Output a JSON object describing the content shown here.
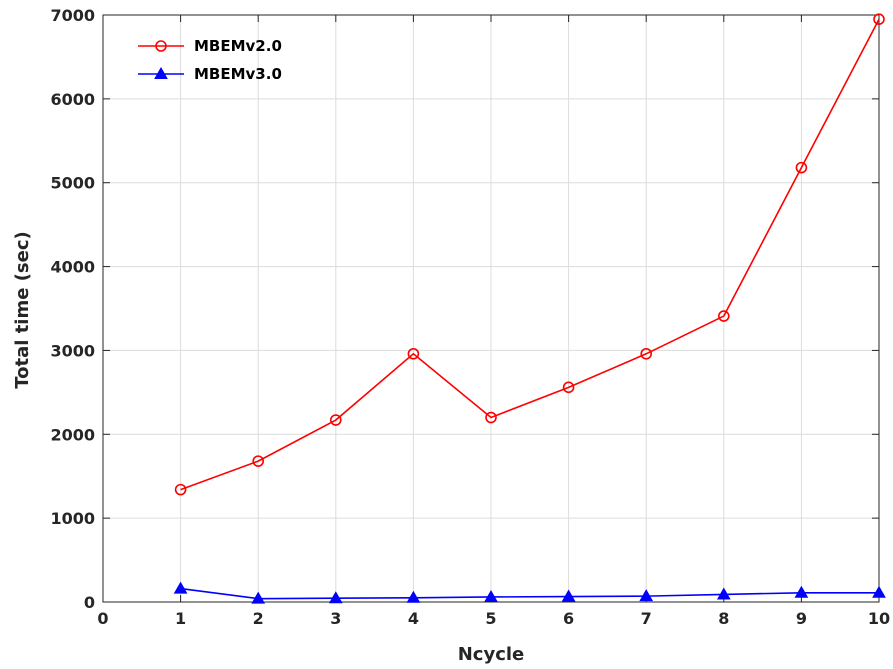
{
  "chart_data": {
    "type": "line",
    "title": "",
    "xlabel": "Ncycle",
    "ylabel": "Total time (sec)",
    "xlim": [
      0,
      10
    ],
    "ylim": [
      0,
      7000
    ],
    "x_ticks": [
      0,
      1,
      2,
      3,
      4,
      5,
      6,
      7,
      8,
      9,
      10
    ],
    "y_ticks": [
      0,
      1000,
      2000,
      3000,
      4000,
      5000,
      6000,
      7000
    ],
    "grid": true,
    "legend_position": "top-left",
    "x": [
      1,
      2,
      3,
      4,
      5,
      6,
      7,
      8,
      9,
      10
    ],
    "series": [
      {
        "name": "MBEMv2.0",
        "color": "#ff0000",
        "marker": "circle",
        "values": [
          1340,
          1680,
          2170,
          2960,
          2200,
          2560,
          2960,
          3410,
          5180,
          6950
        ]
      },
      {
        "name": "MBEMv3.0",
        "color": "#0000ff",
        "marker": "triangle",
        "values": [
          160,
          40,
          45,
          50,
          60,
          65,
          70,
          90,
          110,
          110
        ]
      }
    ]
  }
}
